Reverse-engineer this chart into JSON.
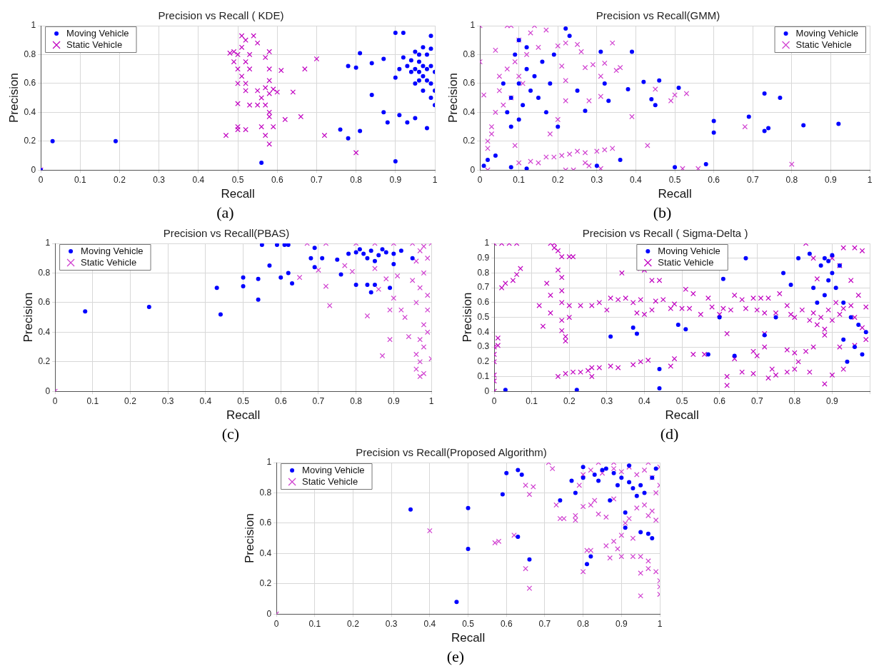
{
  "chart_data": [
    {
      "type": "scatter",
      "title": "Precision vs Recall ( KDE)",
      "xlabel": "Recall",
      "ylabel": "Precision",
      "annotations": [
        "(a)"
      ],
      "xlim": [
        0,
        1
      ],
      "ylim": [
        0,
        1
      ],
      "xticks": [
        0,
        0.1,
        0.2,
        0.3,
        0.4,
        0.5,
        0.6,
        0.7,
        0.8,
        0.9,
        1
      ],
      "yticks": [
        0,
        0.2,
        0.4,
        0.6,
        0.8,
        1
      ],
      "grid": true,
      "legend": "top left",
      "series": [
        {
          "name": "Moving Vehicle",
          "color": "#0000ff",
          "marker": "circle",
          "x": [
            0,
            0.03,
            0.19,
            0.56,
            0.76,
            0.78,
            0.81,
            0.84,
            0.87,
            0.88,
            0.9,
            0.9,
            0.92,
            0.81,
            0.78,
            0.8,
            0.84,
            0.87,
            0.91,
            0.93,
            0.95,
            0.98,
            0.99,
            0.95,
            0.96,
            0.97,
            0.98,
            0.99,
            1,
            0.96,
            0.97,
            0.95,
            0.94,
            0.93,
            0.92,
            0.98,
            0.99,
            1,
            0.97,
            0.96,
            0.94,
            0.91,
            0.9,
            0.98,
            0.99,
            1,
            0.97,
            0.95,
            0.99,
            0.96
          ],
          "values": [
            0,
            0.2,
            0.2,
            0.05,
            0.28,
            0.22,
            0.27,
            0.52,
            0.4,
            0.33,
            0.06,
            0.95,
            0.95,
            0.81,
            0.72,
            0.71,
            0.74,
            0.77,
            0.38,
            0.33,
            0.36,
            0.29,
            0.93,
            0.7,
            0.75,
            0.65,
            0.7,
            0.6,
            0.55,
            0.8,
            0.85,
            0.6,
            0.76,
            0.72,
            0.78,
            0.8,
            0.5,
            0.45,
            0.55,
            0.62,
            0.68,
            0.7,
            0.64,
            0.62,
            0.72,
            0.68,
            0.72,
            0.82,
            0.84,
            0.68
          ]
        },
        {
          "name": "Static Vehicle",
          "color": "#c000c0",
          "marker": "cross",
          "x": [
            0,
            0.5,
            0.51,
            0.52,
            0.52,
            0.53,
            0.51,
            0.5,
            0.49,
            0.49,
            0.52,
            0.53,
            0.54,
            0.55,
            0.5,
            0.52,
            0.55,
            0.57,
            0.58,
            0.6,
            0.59,
            0.56,
            0.57,
            0.58,
            0.58,
            0.55,
            0.53,
            0.5,
            0.5,
            0.5,
            0.52,
            0.47,
            0.57,
            0.58,
            0.56,
            0.59,
            0.58,
            0.58,
            0.58,
            0.57,
            0.61,
            0.62,
            0.64,
            0.66,
            0.67,
            0.7,
            0.72,
            0.8,
            0.48,
            0.51
          ],
          "values": [
            0,
            0.8,
            0.85,
            0.9,
            0.75,
            0.7,
            0.65,
            0.7,
            0.75,
            0.82,
            0.6,
            0.8,
            0.93,
            0.88,
            0.6,
            0.55,
            0.55,
            0.57,
            0.53,
            0.54,
            0.56,
            0.5,
            0.45,
            0.4,
            0.37,
            0.45,
            0.45,
            0.46,
            0.3,
            0.28,
            0.28,
            0.24,
            0.24,
            0.18,
            0.3,
            0.3,
            0.62,
            0.7,
            0.82,
            0.78,
            0.69,
            0.35,
            0.54,
            0.37,
            0.7,
            0.77,
            0.24,
            0.12,
            0.81,
            0.93
          ]
        }
      ]
    },
    {
      "type": "scatter",
      "title": "Precision vs Recall(GMM)",
      "xlabel": "Recall",
      "ylabel": "Precision",
      "annotations": [
        "(b)"
      ],
      "xlim": [
        0,
        1
      ],
      "ylim": [
        0,
        1
      ],
      "xticks": [
        0,
        0.1,
        0.2,
        0.3,
        0.4,
        0.5,
        0.6,
        0.7,
        0.8,
        0.9,
        1
      ],
      "yticks": [
        0,
        0.2,
        0.4,
        0.6,
        0.8,
        1
      ],
      "grid": true,
      "legend": "top right",
      "series": [
        {
          "name": "Moving Vehicle",
          "color": "#0000ff",
          "marker": "circle",
          "x": [
            0.08,
            0.1,
            0.12,
            0.09,
            0.11,
            0.13,
            0.07,
            0.1,
            0.12,
            0.14,
            0.15,
            0.06,
            0.08,
            0.1,
            0.16,
            0.17,
            0.18,
            0.2,
            0.19,
            0.22,
            0.23,
            0.25,
            0.27,
            0.31,
            0.32,
            0.33,
            0.38,
            0.39,
            0.42,
            0.44,
            0.45,
            0.46,
            0.5,
            0.51,
            0.58,
            0.6,
            0.6,
            0.69,
            0.73,
            0.73,
            0.74,
            0.77,
            0.83,
            0.92,
            0.36,
            0.3,
            0.08,
            0.01,
            0.02,
            0.04,
            0.12
          ],
          "values": [
            0.5,
            0.6,
            0.7,
            0.8,
            0.45,
            0.55,
            0.4,
            0.35,
            0.85,
            0.65,
            0.5,
            0.6,
            0.3,
            0.9,
            0.75,
            0.4,
            0.6,
            0.3,
            0.8,
            0.98,
            0.93,
            0.55,
            0.41,
            0.82,
            0.6,
            0.48,
            0.56,
            0.82,
            0.61,
            0.49,
            0.45,
            0.62,
            0.02,
            0.57,
            0.04,
            0.34,
            0.26,
            0.37,
            0.53,
            0.27,
            0.29,
            0.5,
            0.31,
            0.32,
            0.07,
            0.03,
            0.02,
            0.03,
            0.07,
            0.1,
            0.01
          ]
        },
        {
          "name": "Static Vehicle",
          "color": "#d040d0",
          "marker": "cross",
          "x": [
            0,
            0,
            0.07,
            0.08,
            0.14,
            0.04,
            0.03,
            0.02,
            0.02,
            0.01,
            0.05,
            0.05,
            0.07,
            0.09,
            0.1,
            0.08,
            0.06,
            0.04,
            0.11,
            0.12,
            0.1,
            0.15,
            0.13,
            0.17,
            0.2,
            0.22,
            0.18,
            0.21,
            0.22,
            0.25,
            0.26,
            0.27,
            0.29,
            0.28,
            0.31,
            0.31,
            0.32,
            0.34,
            0.35,
            0.36,
            0.39,
            0.43,
            0.45,
            0.49,
            0.5,
            0.53,
            0.68,
            0.8,
            0.56,
            0.52,
            0.17,
            0.19,
            0.21,
            0.23,
            0.25,
            0.27,
            0.3,
            0.32,
            0.34,
            0.09,
            0.1,
            0.13,
            0.15,
            0.02,
            0.22,
            0.24,
            0.27,
            0.28,
            0.31,
            0.2,
            0.22,
            0.03
          ],
          "values": [
            1,
            0.75,
            1,
            1,
            1,
            0.83,
            0.3,
            0.2,
            0.15,
            0.52,
            0.55,
            0.65,
            0.7,
            0.75,
            0.65,
            0.5,
            0.45,
            0.4,
            0.6,
            0.8,
            0.9,
            0.85,
            0.95,
            0.97,
            0.86,
            0.88,
            0.25,
            0.72,
            0.48,
            0.87,
            0.82,
            0.71,
            0.73,
            0.48,
            0.65,
            0.51,
            0.74,
            0.88,
            0.69,
            0.71,
            0.37,
            0.17,
            0.56,
            0.48,
            0.52,
            0.53,
            0.3,
            0.04,
            0.01,
            0.01,
            0.09,
            0.09,
            0.1,
            0.11,
            0.13,
            0.12,
            0.13,
            0.14,
            0.15,
            0.17,
            0.05,
            0.06,
            0.05,
            0,
            0,
            0,
            0.05,
            0.03,
            0.01,
            0.35,
            0.62,
            0.25
          ]
        }
      ]
    },
    {
      "type": "scatter",
      "title": "Precision vs Recall(PBAS)",
      "xlabel": "Recall",
      "ylabel": "Precision",
      "annotations": [
        "(c)"
      ],
      "xlim": [
        0,
        1
      ],
      "ylim": [
        0,
        1
      ],
      "xticks": [
        0,
        0.1,
        0.2,
        0.3,
        0.4,
        0.5,
        0.6,
        0.7,
        0.8,
        0.9,
        1
      ],
      "yticks": [
        0,
        0.2,
        0.4,
        0.6,
        0.8,
        1
      ],
      "grid": true,
      "legend": "top left",
      "series": [
        {
          "name": "Moving Vehicle",
          "color": "#0000ff",
          "marker": "circle",
          "x": [
            0.08,
            0.25,
            0.43,
            0.44,
            0.5,
            0.5,
            0.54,
            0.54,
            0.57,
            0.6,
            0.63,
            0.62,
            0.55,
            0.59,
            0.61,
            0.62,
            0.68,
            0.69,
            0.69,
            0.71,
            0.75,
            0.76,
            0.8,
            0.83,
            0.85,
            0.84,
            0.89,
            0.8,
            0.82,
            0.84,
            0.86,
            0.88,
            0.83,
            0.87,
            0.9,
            0.92,
            0.95,
            0.78,
            0.81,
            0.85,
            0.9
          ],
          "values": [
            0.54,
            0.57,
            0.7,
            0.52,
            0.77,
            0.71,
            0.76,
            0.62,
            0.85,
            0.77,
            0.73,
            0.8,
            0.99,
            0.99,
            0.99,
            0.99,
            0.9,
            0.84,
            0.97,
            0.9,
            0.89,
            0.79,
            0.72,
            0.72,
            0.72,
            0.67,
            0.7,
            0.94,
            0.93,
            0.95,
            0.92,
            0.94,
            0.9,
            0.96,
            0.93,
            0.95,
            0.9,
            0.93,
            0.96,
            0.88,
            0.86
          ]
        },
        {
          "name": "Static Vehicle",
          "color": "#d040d0",
          "marker": "cross",
          "x": [
            0,
            0.67,
            0.72,
            0.8,
            0.85,
            0.9,
            0.95,
            1,
            0.98,
            0.97,
            0.99,
            0.96,
            0.98,
            0.95,
            0.97,
            0.99,
            0.96,
            0.99,
            0.92,
            0.9,
            0.89,
            0.93,
            0.98,
            0.99,
            0.97,
            0.98,
            0.96,
            0.97,
            0.96,
            0.97,
            0.98,
            1,
            0.94,
            0.87,
            0.89,
            0.83,
            0.73,
            0.72,
            0.7,
            0.65,
            0.77,
            0.79,
            0.85,
            0.86,
            0.88,
            0.91
          ],
          "values": [
            0,
            1,
            1,
            1,
            1,
            1,
            1,
            1,
            0.98,
            0.95,
            0.9,
            0.88,
            0.8,
            0.75,
            0.7,
            0.65,
            0.6,
            0.55,
            0.55,
            0.63,
            0.55,
            0.5,
            0.45,
            0.4,
            0.35,
            0.3,
            0.25,
            0.2,
            0.15,
            0.1,
            0.12,
            0.22,
            0.37,
            0.24,
            0.35,
            0.51,
            0.58,
            0.71,
            0.82,
            0.77,
            0.85,
            0.81,
            0.83,
            0.69,
            0.76,
            0.78
          ]
        }
      ]
    },
    {
      "type": "scatter",
      "title": "Precision vs Recall ( Sigma-Delta )",
      "xlabel": "Recall",
      "ylabel": "Precision",
      "annotations": [
        "(d)"
      ],
      "xlim": [
        0,
        1
      ],
      "ylim": [
        0,
        1
      ],
      "xticks": [
        0,
        0.1,
        0.2,
        0.3,
        0.4,
        0.5,
        0.6,
        0.7,
        0.8,
        0.9,
        {
          "value": 1,
          "label": null
        }
      ],
      "yticks": [
        0,
        0.1,
        0.2,
        0.3,
        0.4,
        0.5,
        0.6,
        0.7,
        0.8,
        0.9,
        1
      ],
      "grid": true,
      "legend": "top",
      "series": [
        {
          "name": "Moving Vehicle",
          "color": "#0000ff",
          "marker": "circle",
          "x": [
            0.88,
            0.89,
            0.9,
            0.87,
            0.9,
            0.89,
            0.91,
            0.88,
            0.93,
            0.85,
            0.92,
            0.95,
            0.97,
            0.99,
            0.93,
            0.94,
            0.96,
            0.98,
            0.84,
            0.81,
            0.86,
            0.77,
            0.79,
            0.67,
            0.61,
            0.49,
            0.51,
            0.37,
            0.38,
            0.31,
            0.44,
            0.44,
            0.22,
            0.03,
            0.57,
            0.64,
            0.72,
            0.6,
            0.75
          ],
          "values": [
            0.9,
            0.88,
            0.92,
            0.85,
            0.8,
            0.75,
            0.7,
            0.65,
            0.6,
            0.7,
            0.85,
            0.5,
            0.45,
            0.4,
            0.35,
            0.2,
            0.3,
            0.25,
            0.93,
            0.9,
            0.6,
            0.8,
            0.72,
            0.9,
            0.76,
            0.45,
            0.42,
            0.43,
            0.39,
            0.37,
            0.15,
            0.02,
            0.01,
            0.01,
            0.25,
            0.24,
            0.38,
            0.5,
            0.5
          ]
        },
        {
          "name": "Static Vehicle",
          "color": "#c000c0",
          "marker": "cross",
          "x": [
            0,
            0.02,
            0.04,
            0.06,
            0.15,
            0.16,
            0.16,
            0.17,
            0.18,
            0.2,
            0.21,
            0.34,
            0.39,
            0.4,
            0.42,
            0.44,
            0.02,
            0.03,
            0.05,
            0.06,
            0.07,
            0.14,
            0.15,
            0.12,
            0.13,
            0.15,
            0.17,
            0.18,
            0.18,
            0.18,
            0.18,
            0.18,
            0.19,
            0.19,
            0.2,
            0.2,
            0.23,
            0.26,
            0.28,
            0.3,
            0.31,
            0.33,
            0.35,
            0.37,
            0.38,
            0.39,
            0.4,
            0.42,
            0.43,
            0.45,
            0.47,
            0.48,
            0.5,
            0.51,
            0.52,
            0.53,
            0.55,
            0.57,
            0.58,
            0.6,
            0.61,
            0.63,
            0.64,
            0.66,
            0.67,
            0.69,
            0.7,
            0.71,
            0.72,
            0.73,
            0.75,
            0.76,
            0.78,
            0.79,
            0.8,
            0.82,
            0.84,
            0.85,
            0.86,
            0.87,
            0.88,
            0.89,
            0.9,
            0.91,
            0.92,
            0.93,
            0.95,
            0.96,
            0.88,
            0.85,
            0.9,
            0.92,
            0.93,
            0.96,
            0.98,
            0.83,
            0.86,
            0.95,
            0.97,
            0.99,
            0.98,
            0.96,
            0.92,
            0.85,
            0.83,
            0.8,
            0.78,
            0.81,
            0.84,
            0.78,
            0.8,
            0.88,
            0.9,
            0.93,
            0.99,
            0.72,
            0.7,
            0.69,
            0.72,
            0.73,
            0.74,
            0.75,
            0.69,
            0.66,
            0.64,
            0.62,
            0.62,
            0.62,
            0.56,
            0.53,
            0.48,
            0.47,
            0.41,
            0.39,
            0.37,
            0.33,
            0.31,
            0.28,
            0.26,
            0.25,
            0.23,
            0.21,
            0.19,
            0.17,
            0.26,
            0,
            0,
            0,
            0.01,
            0.01,
            0,
            0,
            0
          ],
          "values": [
            1,
            1,
            1,
            1,
            1,
            1,
            0.97,
            0.95,
            0.91,
            0.91,
            0.91,
            0.8,
            0.83,
            0.82,
            0.75,
            0.75,
            0.7,
            0.73,
            0.75,
            0.79,
            0.83,
            0.73,
            0.65,
            0.58,
            0.44,
            0.53,
            0.82,
            0.77,
            0.68,
            0.6,
            0.48,
            0.41,
            0.37,
            0.34,
            0.58,
            0.5,
            0.58,
            0.58,
            0.6,
            0.55,
            0.63,
            0.62,
            0.63,
            0.6,
            0.53,
            0.62,
            0.52,
            0.55,
            0.61,
            0.62,
            0.56,
            0.59,
            0.56,
            0.69,
            0.56,
            0.66,
            0.52,
            0.63,
            0.57,
            0.52,
            0.56,
            0.55,
            0.65,
            0.62,
            0.56,
            0.63,
            0.55,
            0.63,
            0.53,
            0.63,
            0.53,
            0.66,
            0.58,
            0.52,
            0.5,
            0.55,
            0.48,
            0.53,
            0.45,
            0.5,
            0.42,
            0.55,
            0.48,
            0.6,
            0.52,
            0.56,
            0.58,
            0.5,
            0.38,
            0.9,
            0.9,
            0.85,
            0.97,
            0.97,
            0.95,
            1,
            0.76,
            0.75,
            0.65,
            0.57,
            0.43,
            0.31,
            0.3,
            0.3,
            0.27,
            0.26,
            0.28,
            0.2,
            0.13,
            0.13,
            0.15,
            0.05,
            0.11,
            0.15,
            0.35,
            0.3,
            0.24,
            0.27,
            0.39,
            0.09,
            0.15,
            0.11,
            0.12,
            0.13,
            0.22,
            0.39,
            0.1,
            0.04,
            0.25,
            0.25,
            0.22,
            0.17,
            0.21,
            0.2,
            0.18,
            0.16,
            0.17,
            0.16,
            0.16,
            0.14,
            0.13,
            0.13,
            0.12,
            0.1,
            0.1,
            0.3,
            0.25,
            0.2,
            0.31,
            0.36,
            0.11,
            0.07,
            0
          ]
        }
      ]
    },
    {
      "type": "scatter",
      "title": "Precision vs Recall(Proposed Algorithm)",
      "xlabel": "Recall",
      "ylabel": "Precision",
      "annotations": [
        "(e)"
      ],
      "xlim": [
        0,
        1
      ],
      "ylim": [
        0,
        1
      ],
      "xticks": [
        0,
        0.1,
        0.2,
        0.3,
        0.4,
        0.5,
        0.6,
        0.7,
        0.8,
        0.9,
        1
      ],
      "yticks": [
        0,
        0.2,
        0.4,
        0.6,
        0.8,
        1
      ],
      "grid": true,
      "legend": "top left",
      "series": [
        {
          "name": "Moving Vehicle",
          "color": "#0000ff",
          "marker": "circle",
          "x": [
            0.35,
            0.47,
            0.5,
            0.5,
            0.59,
            0.6,
            0.63,
            0.64,
            0.63,
            0.66,
            0.74,
            0.78,
            0.77,
            0.8,
            0.83,
            0.85,
            0.88,
            0.9,
            0.92,
            0.93,
            0.95,
            0.96,
            0.87,
            0.91,
            0.91,
            0.95,
            0.97,
            0.98,
            0.81,
            0.82,
            0.86,
            0.92,
            0.8,
            0.84,
            0.89,
            0.94,
            0.98,
            0.99
          ],
          "values": [
            0.69,
            0.08,
            0.7,
            0.43,
            0.79,
            0.93,
            0.95,
            0.92,
            0.51,
            0.36,
            0.75,
            0.8,
            0.88,
            0.97,
            0.92,
            0.95,
            0.93,
            0.9,
            0.87,
            0.83,
            0.85,
            0.8,
            0.75,
            0.67,
            0.57,
            0.54,
            0.53,
            0.5,
            0.33,
            0.38,
            0.96,
            0.98,
            0.9,
            0.88,
            0.85,
            0.78,
            0.9,
            0.96
          ]
        },
        {
          "name": "Static Vehicle",
          "color": "#d040d0",
          "marker": "cross",
          "x": [
            0,
            0.4,
            0.57,
            0.58,
            0.62,
            0.65,
            0.66,
            0.65,
            0.66,
            0.67,
            0.71,
            0.72,
            0.73,
            0.74,
            0.75,
            0.78,
            0.78,
            0.8,
            0.8,
            0.81,
            0.82,
            0.82,
            0.83,
            0.84,
            0.86,
            0.86,
            0.87,
            0.88,
            0.9,
            0.89,
            0.9,
            0.91,
            0.92,
            0.93,
            0.93,
            0.95,
            0.95,
            0.95,
            0.97,
            0.97,
            0.99,
            1,
            1,
            1,
            0.99,
            0.98,
            0.97,
            0.96,
            0.94,
            0.99,
            1,
            0.98,
            0.96,
            0.94,
            0.92,
            0.9,
            0.88,
            0.85,
            0.82,
            0.8,
            0.79,
            0.84,
            0.88,
            0.97,
            1,
            0.88
          ],
          "values": [
            0,
            0.55,
            0.47,
            0.48,
            0.52,
            0.3,
            0.17,
            0.85,
            0.79,
            0.84,
            1,
            0.96,
            0.72,
            0.63,
            0.63,
            0.65,
            0.62,
            0.71,
            0.28,
            0.42,
            0.42,
            0.72,
            0.75,
            0.66,
            0.64,
            0.45,
            0.37,
            0.48,
            0.52,
            0.43,
            0.38,
            0.6,
            0.63,
            0.38,
            0.5,
            0.27,
            0.12,
            0.38,
            0.35,
            0.3,
            0.28,
            0.22,
            0.18,
            0.13,
            0.62,
            0.68,
            0.65,
            0.72,
            0.7,
            0.8,
            0.85,
            0.9,
            0.95,
            0.92,
            0.97,
            0.94,
            0.96,
            0.93,
            0.95,
            0.92,
            0.85,
            1,
            1,
            1,
            0.97,
            0.76
          ]
        }
      ]
    }
  ]
}
